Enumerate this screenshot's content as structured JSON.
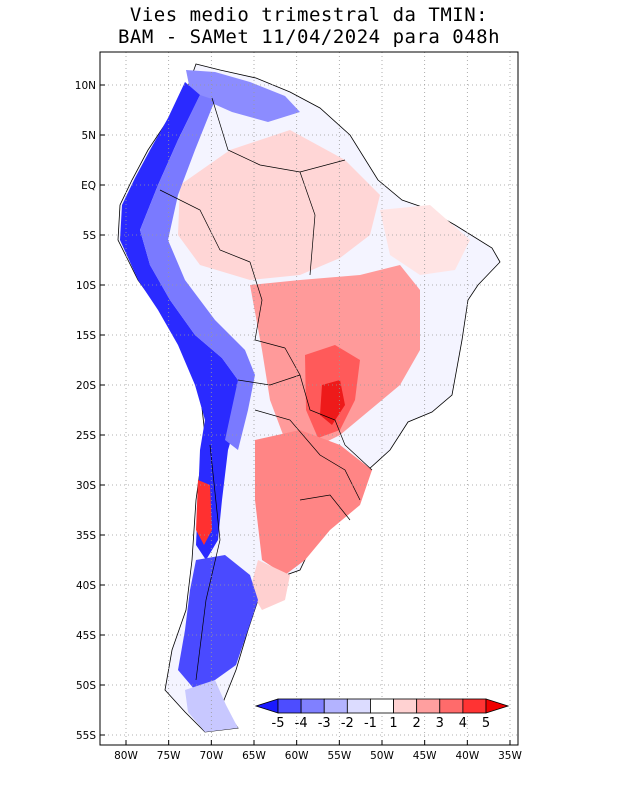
{
  "title": {
    "line1": "Vies medio trimestral da TMIN:",
    "line2": "BAM - SAMet 11/04/2024  para 048h"
  },
  "axes": {
    "lon_ticks": [
      "80W",
      "75W",
      "70W",
      "65W",
      "60W",
      "55W",
      "50W",
      "45W",
      "40W",
      "35W"
    ],
    "lat_ticks": [
      "10N",
      "5N",
      "EQ",
      "5S",
      "10S",
      "15S",
      "20S",
      "25S",
      "30S",
      "35S",
      "40S",
      "45S",
      "50S",
      "55S"
    ],
    "lon_range": [
      -83,
      -34
    ],
    "lat_range": [
      -56,
      13
    ],
    "grid": "dotted"
  },
  "colorbar": {
    "labels": [
      "-5",
      "-4",
      "-3",
      "-2",
      "-1",
      "1",
      "2",
      "3",
      "4",
      "5"
    ],
    "colors": [
      "#1a1aff",
      "#4d4dff",
      "#8080ff",
      "#b3b3ff",
      "#dcdcff",
      "#ffffff",
      "#ffd2d2",
      "#ff9f9f",
      "#ff6b6b",
      "#ff3333",
      "#ee0000"
    ]
  },
  "regions": [
    {
      "name": "andes-cold-bias",
      "color": "#2a2aff"
    },
    {
      "name": "patagonia-cold-bias",
      "color": "#4a4aff"
    },
    {
      "name": "north-coast-cold-bias",
      "color": "#8080ff"
    },
    {
      "name": "amazon-warm-bias",
      "color": "#ffd6d6"
    },
    {
      "name": "central-brazil-warm-bias",
      "color": "#ff8f8f"
    },
    {
      "name": "pantanal-warm-bias",
      "color": "#ff5a5a"
    },
    {
      "name": "argentina-warm-bias",
      "color": "#ff8585"
    },
    {
      "name": "chile-warm-spot",
      "color": "#ff3030"
    }
  ]
}
